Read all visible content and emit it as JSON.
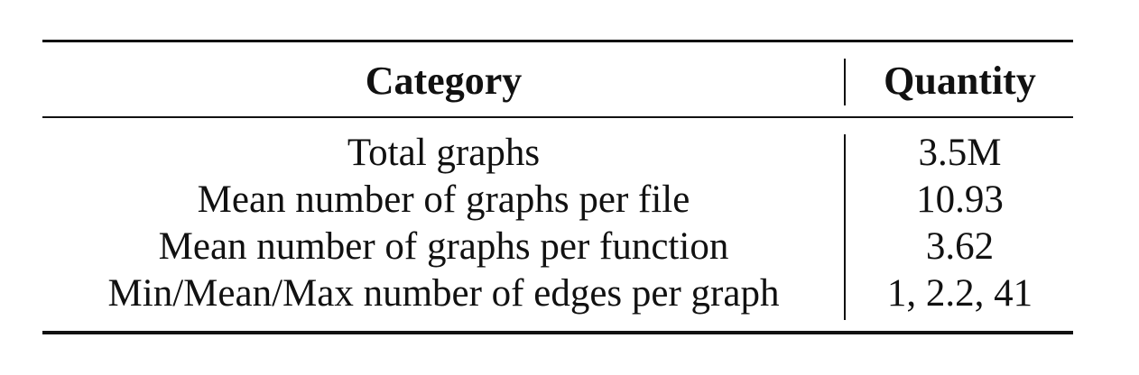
{
  "table": {
    "headers": {
      "category": "Category",
      "quantity": "Quantity"
    },
    "rows": [
      {
        "category": "Total graphs",
        "quantity": "3.5M"
      },
      {
        "category": "Mean number of graphs per file",
        "quantity": "10.93"
      },
      {
        "category": "Mean number of graphs per function",
        "quantity": "3.62"
      },
      {
        "category": "Min/Mean/Max number of edges per graph",
        "quantity": "1, 2.2, 41"
      }
    ]
  }
}
